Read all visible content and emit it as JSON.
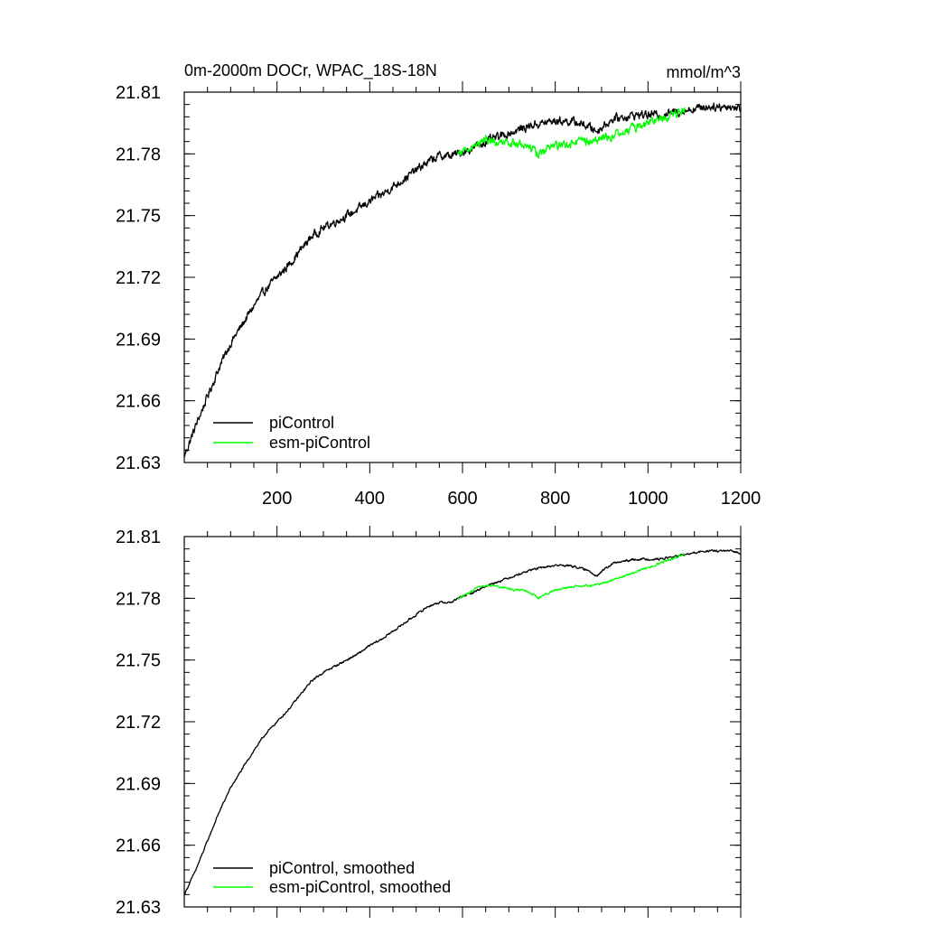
{
  "colors": {
    "piControl": "#000000",
    "esm_piControl": "#00ff00",
    "axis": "#000000"
  },
  "chart_data": [
    {
      "type": "line",
      "title": "0m-2000m DOCr, WPAC_18S-18N",
      "units": "mmol/m^3",
      "xlabel": "",
      "ylabel": "",
      "xlim": [
        0,
        1200
      ],
      "ylim": [
        21.63,
        21.81
      ],
      "yticks": [
        21.63,
        21.66,
        21.69,
        21.72,
        21.75,
        21.78,
        21.81
      ],
      "ytick_labels": [
        "21.63",
        "21.66",
        "21.69",
        "21.72",
        "21.75",
        "21.78",
        "21.81"
      ],
      "xticks": [
        200,
        400,
        600,
        800,
        1000,
        1200
      ],
      "xtick_labels": [
        "200",
        "400",
        "600",
        "800",
        "1000",
        "1200"
      ],
      "grid": false,
      "legend_position": "bottom-left",
      "smoothed": false,
      "series": [
        {
          "name": "piControl",
          "color": "#000000",
          "x_start": 0,
          "x_end": 1200,
          "noise": 0.0016,
          "values": [
            [
              0,
              21.633
            ],
            [
              25,
              21.648
            ],
            [
              50,
              21.662
            ],
            [
              75,
              21.676
            ],
            [
              100,
              21.688
            ],
            [
              125,
              21.697
            ],
            [
              150,
              21.706
            ],
            [
              175,
              21.714
            ],
            [
              200,
              21.72
            ],
            [
              225,
              21.726
            ],
            [
              250,
              21.733
            ],
            [
              275,
              21.74
            ],
            [
              300,
              21.744
            ],
            [
              325,
              21.747
            ],
            [
              350,
              21.75
            ],
            [
              375,
              21.753
            ],
            [
              400,
              21.757
            ],
            [
              425,
              21.76
            ],
            [
              450,
              21.764
            ],
            [
              475,
              21.768
            ],
            [
              500,
              21.772
            ],
            [
              525,
              21.776
            ],
            [
              550,
              21.779
            ],
            [
              575,
              21.779
            ],
            [
              600,
              21.781
            ],
            [
              625,
              21.783
            ],
            [
              650,
              21.786
            ],
            [
              675,
              21.788
            ],
            [
              700,
              21.79
            ],
            [
              725,
              21.792
            ],
            [
              750,
              21.794
            ],
            [
              775,
              21.795
            ],
            [
              800,
              21.796
            ],
            [
              825,
              21.796
            ],
            [
              850,
              21.795
            ],
            [
              875,
              21.793
            ],
            [
              890,
              21.791
            ],
            [
              900,
              21.793
            ],
            [
              925,
              21.797
            ],
            [
              950,
              21.798
            ],
            [
              975,
              21.799
            ],
            [
              1000,
              21.799
            ],
            [
              1025,
              21.799
            ],
            [
              1050,
              21.8
            ],
            [
              1075,
              21.801
            ],
            [
              1100,
              21.802
            ],
            [
              1125,
              21.803
            ],
            [
              1150,
              21.803
            ],
            [
              1175,
              21.803
            ],
            [
              1200,
              21.802
            ]
          ]
        },
        {
          "name": "esm-piControl",
          "color": "#00ff00",
          "x_start": 590,
          "x_end": 1080,
          "noise": 0.0016,
          "values": [
            [
              590,
              21.78
            ],
            [
              610,
              21.782
            ],
            [
              630,
              21.785
            ],
            [
              650,
              21.787
            ],
            [
              670,
              21.786
            ],
            [
              690,
              21.785
            ],
            [
              710,
              21.785
            ],
            [
              730,
              21.784
            ],
            [
              750,
              21.782
            ],
            [
              765,
              21.78
            ],
            [
              780,
              21.782
            ],
            [
              800,
              21.784
            ],
            [
              825,
              21.785
            ],
            [
              850,
              21.786
            ],
            [
              875,
              21.786
            ],
            [
              900,
              21.787
            ],
            [
              925,
              21.789
            ],
            [
              950,
              21.791
            ],
            [
              975,
              21.793
            ],
            [
              1000,
              21.795
            ],
            [
              1025,
              21.797
            ],
            [
              1050,
              21.799
            ],
            [
              1075,
              21.801
            ],
            [
              1080,
              21.801
            ]
          ]
        }
      ]
    },
    {
      "type": "line",
      "title": "",
      "xlabel": "",
      "ylabel": "",
      "xlim": [
        0,
        1200
      ],
      "ylim": [
        21.63,
        21.81
      ],
      "yticks": [
        21.63,
        21.66,
        21.69,
        21.72,
        21.75,
        21.78,
        21.81
      ],
      "ytick_labels": [
        "21.63",
        "21.66",
        "21.69",
        "21.72",
        "21.75",
        "21.78",
        "21.81"
      ],
      "xticks": [
        200,
        400,
        600,
        800,
        1000,
        1200
      ],
      "grid": false,
      "legend_position": "bottom-left",
      "smoothed": true,
      "series": [
        {
          "name": "piControl, smoothed",
          "color": "#000000",
          "x_start": 0,
          "x_end": 1200,
          "noise": 0.0004,
          "values": [
            [
              0,
              21.636
            ],
            [
              25,
              21.648
            ],
            [
              50,
              21.662
            ],
            [
              75,
              21.676
            ],
            [
              100,
              21.688
            ],
            [
              125,
              21.697
            ],
            [
              150,
              21.706
            ],
            [
              175,
              21.714
            ],
            [
              200,
              21.72
            ],
            [
              225,
              21.726
            ],
            [
              250,
              21.733
            ],
            [
              275,
              21.74
            ],
            [
              300,
              21.744
            ],
            [
              325,
              21.747
            ],
            [
              350,
              21.75
            ],
            [
              375,
              21.753
            ],
            [
              400,
              21.757
            ],
            [
              425,
              21.76
            ],
            [
              450,
              21.764
            ],
            [
              475,
              21.768
            ],
            [
              500,
              21.772
            ],
            [
              525,
              21.776
            ],
            [
              550,
              21.778
            ],
            [
              575,
              21.778
            ],
            [
              600,
              21.781
            ],
            [
              625,
              21.783
            ],
            [
              650,
              21.786
            ],
            [
              675,
              21.788
            ],
            [
              700,
              21.79
            ],
            [
              725,
              21.792
            ],
            [
              750,
              21.794
            ],
            [
              775,
              21.795
            ],
            [
              800,
              21.796
            ],
            [
              825,
              21.796
            ],
            [
              850,
              21.795
            ],
            [
              875,
              21.793
            ],
            [
              890,
              21.791
            ],
            [
              900,
              21.793
            ],
            [
              925,
              21.797
            ],
            [
              950,
              21.798
            ],
            [
              975,
              21.799
            ],
            [
              1000,
              21.799
            ],
            [
              1025,
              21.799
            ],
            [
              1050,
              21.8
            ],
            [
              1075,
              21.801
            ],
            [
              1100,
              21.802
            ],
            [
              1125,
              21.803
            ],
            [
              1150,
              21.803
            ],
            [
              1175,
              21.803
            ],
            [
              1200,
              21.802
            ]
          ]
        },
        {
          "name": "esm-piControl, smoothed",
          "color": "#00ff00",
          "x_start": 590,
          "x_end": 1080,
          "noise": 0.0004,
          "values": [
            [
              590,
              21.78
            ],
            [
              610,
              21.782
            ],
            [
              630,
              21.785
            ],
            [
              650,
              21.786
            ],
            [
              670,
              21.786
            ],
            [
              690,
              21.785
            ],
            [
              710,
              21.784
            ],
            [
              730,
              21.784
            ],
            [
              750,
              21.782
            ],
            [
              765,
              21.78
            ],
            [
              780,
              21.782
            ],
            [
              800,
              21.784
            ],
            [
              825,
              21.785
            ],
            [
              850,
              21.786
            ],
            [
              875,
              21.786
            ],
            [
              900,
              21.787
            ],
            [
              925,
              21.789
            ],
            [
              950,
              21.791
            ],
            [
              975,
              21.793
            ],
            [
              1000,
              21.795
            ],
            [
              1025,
              21.797
            ],
            [
              1050,
              21.799
            ],
            [
              1075,
              21.801
            ],
            [
              1080,
              21.801
            ]
          ]
        }
      ]
    }
  ]
}
